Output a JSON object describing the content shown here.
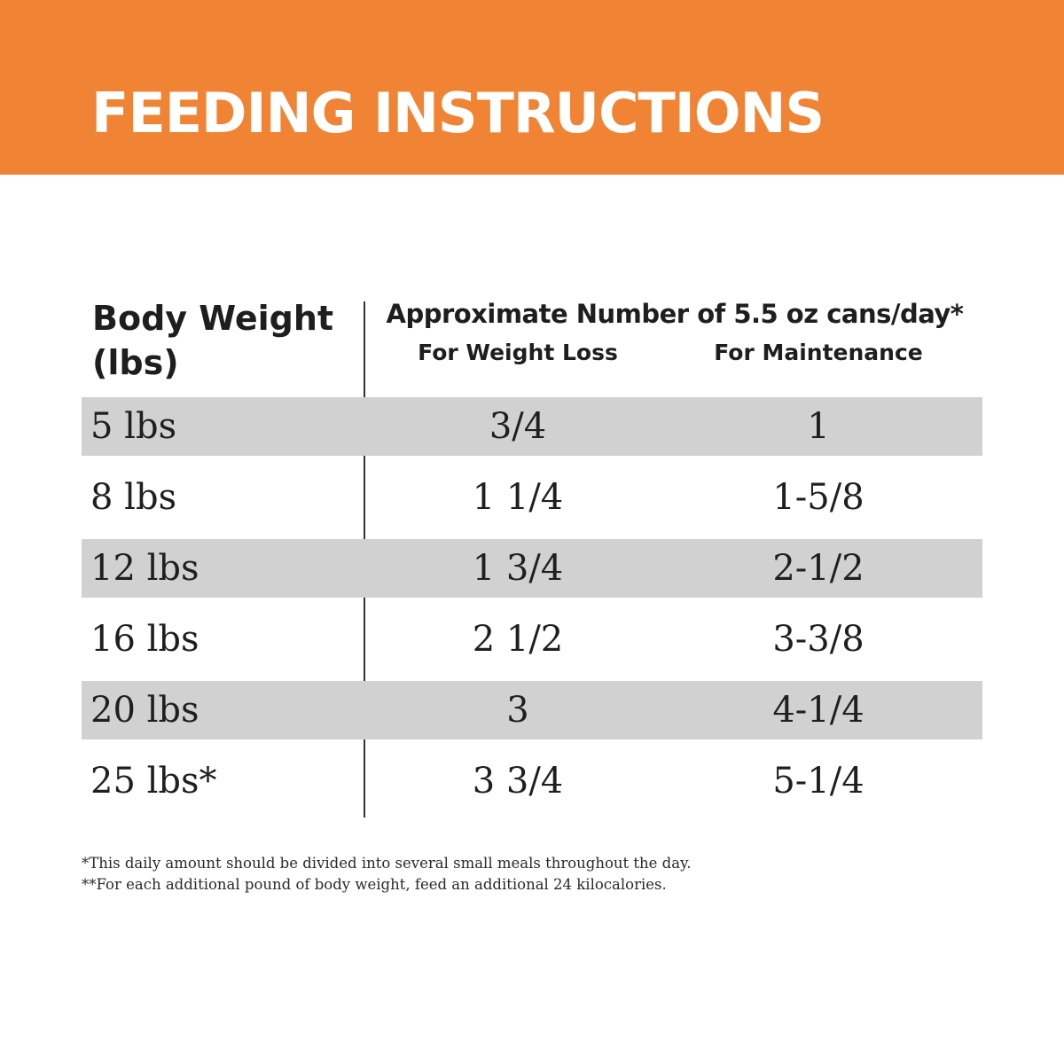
{
  "header": {
    "title": "FEEDING INSTRUCTIONS",
    "background_color": "#f08434"
  },
  "table": {
    "weight_header_line1": "Body Weight",
    "weight_header_line2": "(lbs)",
    "group_header": "Approximate Number of 5.5 oz cans/day*",
    "columns": {
      "loss": "For Weight Loss",
      "maintenance": "For Maintenance"
    },
    "shaded_row_color": "#d1d1d1",
    "rows": [
      {
        "weight": "5 lbs",
        "loss": "3/4",
        "maintenance": "1"
      },
      {
        "weight": "8 lbs",
        "loss": "1 1/4",
        "maintenance": "1-5/8"
      },
      {
        "weight": "12 lbs",
        "loss": "1 3/4",
        "maintenance": "2-1/2"
      },
      {
        "weight": "16 lbs",
        "loss": "2 1/2",
        "maintenance": "3-3/8"
      },
      {
        "weight": "20 lbs",
        "loss": "3",
        "maintenance": "4-1/4"
      },
      {
        "weight": "25 lbs*",
        "loss": "3 3/4",
        "maintenance": "5-1/4"
      }
    ]
  },
  "footnotes": [
    "*This daily amount should be divided into several small meals throughout the day.",
    "**For each additional pound of body weight, feed an additional 24 kilocalories."
  ]
}
